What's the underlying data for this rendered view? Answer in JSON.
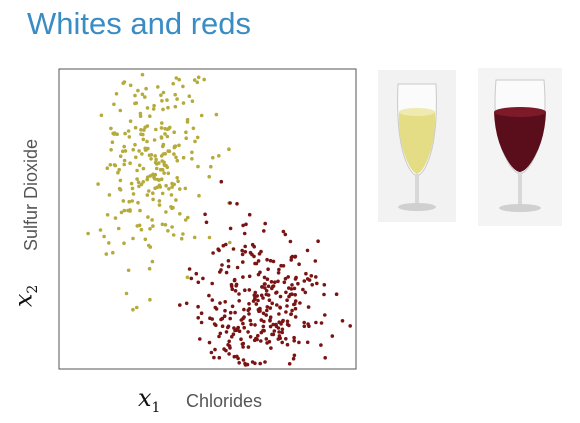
{
  "slide": {
    "title": "Whites and reds"
  },
  "chart_data": {
    "type": "scatter",
    "xlabel": "Chlorides",
    "ylabel": "Sulfur Dioxide",
    "x_symbol": "x",
    "x_index": "1",
    "y_symbol": "x",
    "y_index": "2",
    "xlim": [
      0,
      1
    ],
    "ylim": [
      0,
      1
    ],
    "grid": false,
    "legend": "none",
    "series": [
      {
        "color": "#b5ab3c",
        "cluster": {
          "n": 260,
          "x_mean": 0.31,
          "x_sd": 0.085,
          "y_mean": 0.68,
          "y_sd": 0.17,
          "seed": 7
        }
      },
      {
        "color": "#7a1414",
        "cluster": {
          "n": 330,
          "x_mean": 0.68,
          "x_sd": 0.11,
          "y_mean": 0.21,
          "y_sd": 0.13,
          "seed": 19
        }
      }
    ]
  },
  "images": {
    "white_glass": "white-wine-glass",
    "red_glass": "red-wine-glass"
  }
}
